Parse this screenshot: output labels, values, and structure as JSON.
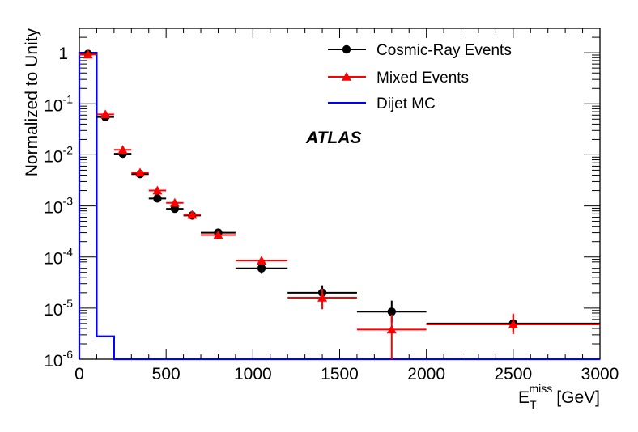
{
  "chart_data": {
    "type": "scatter",
    "title": "",
    "annotation": "ATLAS",
    "xlabel_base": "E",
    "xlabel_sub": "T",
    "xlabel_sup": "miss",
    "xlabel_unit": "[GeV]",
    "ylabel": "Normalized to Unity",
    "xlim": [
      0,
      3000
    ],
    "ylim": [
      1e-06,
      3
    ],
    "yscale": "log",
    "x_ticks": [
      {
        "value": 0,
        "label": "0"
      },
      {
        "value": 500,
        "label": "500"
      },
      {
        "value": 1000,
        "label": "1000"
      },
      {
        "value": 1500,
        "label": "1500"
      },
      {
        "value": 2000,
        "label": "2000"
      },
      {
        "value": 2500,
        "label": "2500"
      },
      {
        "value": 3000,
        "label": "3000"
      }
    ],
    "y_ticks": [
      {
        "value": 1,
        "base": "1",
        "exp": ""
      },
      {
        "value": 0.1,
        "base": "10",
        "exp": "-1"
      },
      {
        "value": 0.01,
        "base": "10",
        "exp": "-2"
      },
      {
        "value": 0.001,
        "base": "10",
        "exp": "-3"
      },
      {
        "value": 0.0001,
        "base": "10",
        "exp": "-4"
      },
      {
        "value": 1e-05,
        "base": "10",
        "exp": "-5"
      },
      {
        "value": 1e-06,
        "base": "10",
        "exp": "-6"
      }
    ],
    "legend_position": "top-right",
    "series": [
      {
        "name": "Cosmic-Ray Events",
        "kind": "points",
        "marker": "circle",
        "color": "#000000",
        "points": [
          {
            "x": 50,
            "xlo": 0,
            "xhi": 100,
            "y": 0.95,
            "ylo": 0.9,
            "yhi": 1.0
          },
          {
            "x": 150,
            "xlo": 100,
            "xhi": 200,
            "y": 0.055,
            "ylo": 0.052,
            "yhi": 0.058
          },
          {
            "x": 250,
            "xlo": 200,
            "xhi": 300,
            "y": 0.0105,
            "ylo": 0.0098,
            "yhi": 0.0112
          },
          {
            "x": 350,
            "xlo": 300,
            "xhi": 400,
            "y": 0.0042,
            "ylo": 0.0039,
            "yhi": 0.0045
          },
          {
            "x": 450,
            "xlo": 400,
            "xhi": 500,
            "y": 0.0014,
            "ylo": 0.00128,
            "yhi": 0.00152
          },
          {
            "x": 550,
            "xlo": 500,
            "xhi": 600,
            "y": 0.00088,
            "ylo": 0.0008,
            "yhi": 0.00096
          },
          {
            "x": 650,
            "xlo": 600,
            "xhi": 700,
            "y": 0.00065,
            "ylo": 0.00059,
            "yhi": 0.00071
          },
          {
            "x": 800,
            "xlo": 700,
            "xhi": 900,
            "y": 0.0003,
            "ylo": 0.00027,
            "yhi": 0.00033
          },
          {
            "x": 1050,
            "xlo": 900,
            "xhi": 1200,
            "y": 6e-05,
            "ylo": 4.7e-05,
            "yhi": 7.4e-05
          },
          {
            "x": 1400,
            "xlo": 1200,
            "xhi": 1600,
            "y": 2e-05,
            "ylo": 1.4e-05,
            "yhi": 2.8e-05
          },
          {
            "x": 1800,
            "xlo": 1600,
            "xhi": 2000,
            "y": 8.5e-06,
            "ylo": 5.2e-06,
            "yhi": 1.4e-05
          },
          {
            "x": 2500,
            "xlo": 2000,
            "xhi": 3000,
            "y": 5e-06,
            "ylo": 3.4e-06,
            "yhi": 7.4e-06
          }
        ]
      },
      {
        "name": "Mixed Events",
        "kind": "points",
        "marker": "triangle",
        "color": "#ff0000",
        "points": [
          {
            "x": 50,
            "xlo": 0,
            "xhi": 100,
            "y": 0.92,
            "ylo": 0.88,
            "yhi": 0.96
          },
          {
            "x": 150,
            "xlo": 100,
            "xhi": 200,
            "y": 0.062,
            "ylo": 0.059,
            "yhi": 0.065
          },
          {
            "x": 250,
            "xlo": 200,
            "xhi": 300,
            "y": 0.0125,
            "ylo": 0.0118,
            "yhi": 0.0132
          },
          {
            "x": 350,
            "xlo": 300,
            "xhi": 400,
            "y": 0.0045,
            "ylo": 0.0042,
            "yhi": 0.0048
          },
          {
            "x": 450,
            "xlo": 400,
            "xhi": 500,
            "y": 0.002,
            "ylo": 0.00186,
            "yhi": 0.00214
          },
          {
            "x": 550,
            "xlo": 500,
            "xhi": 600,
            "y": 0.00115,
            "ylo": 0.00106,
            "yhi": 0.00124
          },
          {
            "x": 650,
            "xlo": 600,
            "xhi": 700,
            "y": 0.00067,
            "ylo": 0.00061,
            "yhi": 0.00073
          },
          {
            "x": 800,
            "xlo": 700,
            "xhi": 900,
            "y": 0.00027,
            "ylo": 0.00024,
            "yhi": 0.0003
          },
          {
            "x": 1050,
            "xlo": 900,
            "xhi": 1200,
            "y": 8.5e-05,
            "ylo": 7.2e-05,
            "yhi": 0.0001
          },
          {
            "x": 1400,
            "xlo": 1200,
            "xhi": 1600,
            "y": 1.6e-05,
            "ylo": 9.5e-06,
            "yhi": 2.4e-05
          },
          {
            "x": 1800,
            "xlo": 1600,
            "xhi": 2000,
            "y": 3.8e-06,
            "ylo": 1e-06,
            "yhi": 7.5e-06
          },
          {
            "x": 2500,
            "xlo": 2000,
            "xhi": 3000,
            "y": 4.8e-06,
            "ylo": 3.1e-06,
            "yhi": 7.8e-06
          }
        ]
      },
      {
        "name": "Dijet MC",
        "kind": "histogram",
        "color": "#0000ff",
        "bins": [
          {
            "xlo": 0,
            "xhi": 100,
            "y": 1.0
          },
          {
            "xlo": 100,
            "xhi": 200,
            "y": 2.8e-06
          },
          {
            "xlo": 200,
            "xhi": 3000,
            "y": 1e-06
          }
        ]
      }
    ]
  }
}
